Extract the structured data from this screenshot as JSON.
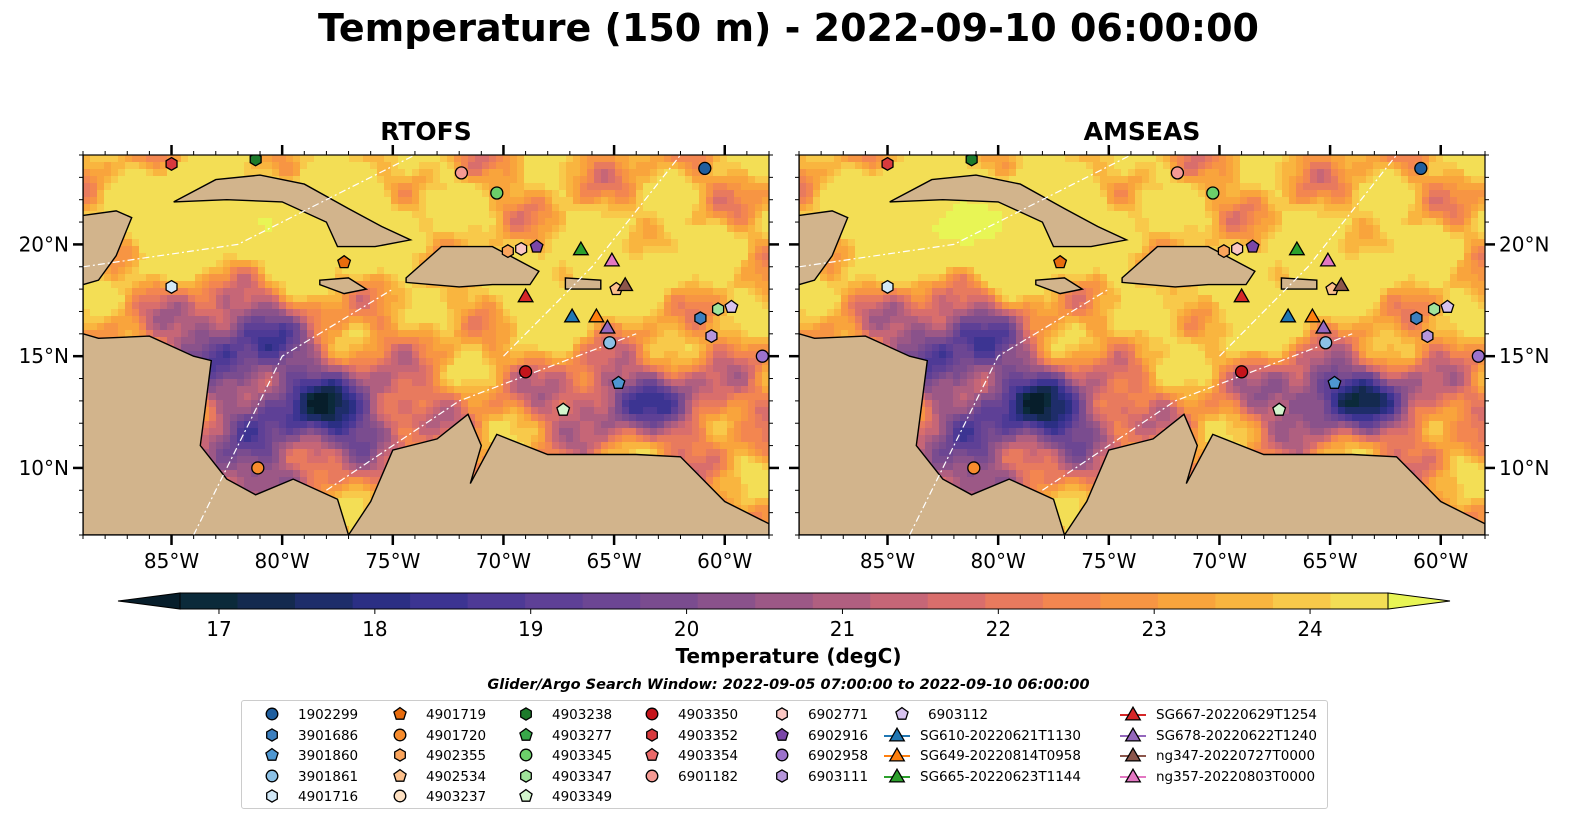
{
  "title": "Temperature (150 m) - 2022-09-10 06:00:00",
  "panels": [
    {
      "title": "RTOFS"
    },
    {
      "title": "AMSEAS"
    }
  ],
  "lon_ticks": [
    "85°W",
    "80°W",
    "75°W",
    "70°W",
    "65°W",
    "60°W"
  ],
  "lat_ticks": [
    "20°N",
    "15°N",
    "10°N"
  ],
  "colorbar": {
    "label": "Temperature (degC)",
    "ticks": [
      "17",
      "18",
      "19",
      "20",
      "21",
      "22",
      "23",
      "24"
    ],
    "min": 16.75,
    "max": 24.5,
    "step": 0.25,
    "colors": [
      "#0b2a3a",
      "#142a4f",
      "#1e2d6a",
      "#2b2f84",
      "#3c3492",
      "#4e3a96",
      "#5e4096",
      "#6c4693",
      "#7a4c8f",
      "#8a528b",
      "#9c5886",
      "#b05f80",
      "#c66677",
      "#d96e6c",
      "#e87a5e",
      "#f38650",
      "#f79543",
      "#f9a43c",
      "#f9b53f",
      "#f8c94a",
      "#f3de55"
    ],
    "under_color": "#071e2b",
    "over_color": "#e8f555"
  },
  "legend": {
    "title": "Glider/Argo Search Window: 2022-09-05 07:00:00 to 2022-09-10 06:00:00",
    "columns": [
      [
        {
          "label": "1902299",
          "marker": "circle",
          "color": "#1f5e9e"
        },
        {
          "label": "3901686",
          "marker": "hexagon",
          "color": "#3b7fbf"
        },
        {
          "label": "3901860",
          "marker": "pentagon",
          "color": "#4e97d1"
        },
        {
          "label": "3901861",
          "marker": "circle",
          "color": "#8cc1e6"
        },
        {
          "label": "4901716",
          "marker": "hexagon",
          "color": "#d2e8f7"
        }
      ],
      [
        {
          "label": "4901719",
          "marker": "pentagon",
          "color": "#e86c0e"
        },
        {
          "label": "4901720",
          "marker": "circle",
          "color": "#f78c2d"
        },
        {
          "label": "4902355",
          "marker": "hexagon",
          "color": "#fba55c"
        },
        {
          "label": "4902534",
          "marker": "pentagon",
          "color": "#fcc08c"
        },
        {
          "label": "4903237",
          "marker": "circle",
          "color": "#fde0c2"
        }
      ],
      [
        {
          "label": "4903238",
          "marker": "hexagon",
          "color": "#1d7a2b"
        },
        {
          "label": "4903277",
          "marker": "pentagon",
          "color": "#38a849"
        },
        {
          "label": "4903345",
          "marker": "circle",
          "color": "#6ccf6a"
        },
        {
          "label": "4903347",
          "marker": "hexagon",
          "color": "#a0e39a"
        },
        {
          "label": "4903349",
          "marker": "pentagon",
          "color": "#d3f5cd"
        }
      ],
      [
        {
          "label": "4903350",
          "marker": "circle",
          "color": "#c4141b"
        },
        {
          "label": "4903352",
          "marker": "hexagon",
          "color": "#d83a3e"
        },
        {
          "label": "4903354",
          "marker": "pentagon",
          "color": "#eb6a6a"
        },
        {
          "label": "6901182",
          "marker": "circle",
          "color": "#f59a94"
        }
      ],
      [
        {
          "label": "6902771",
          "marker": "hexagon",
          "color": "#fbc7c3"
        },
        {
          "label": "6902916",
          "marker": "pentagon",
          "color": "#7a46a8"
        },
        {
          "label": "6902958",
          "marker": "circle",
          "color": "#9c72cc"
        },
        {
          "label": "6903111",
          "marker": "hexagon",
          "color": "#b696db"
        }
      ],
      [
        {
          "label": "6903112",
          "marker": "pentagon",
          "color": "#d7c2ef"
        },
        {
          "label": "SG610-20220621T1130",
          "marker": "triangle-line",
          "color": "#1f77b4"
        },
        {
          "label": "SG649-20220814T0958",
          "marker": "triangle-line",
          "color": "#ff7f0e"
        },
        {
          "label": "SG665-20220623T1144",
          "marker": "triangle-line",
          "color": "#2ca02c"
        }
      ],
      [
        {
          "label": "SG667-20220629T1254",
          "marker": "triangle-line",
          "color": "#d62728"
        },
        {
          "label": "SG678-20220622T1240",
          "marker": "triangle-line",
          "color": "#9467bd"
        },
        {
          "label": "ng347-20220727T0000",
          "marker": "triangle-line",
          "color": "#8c564b"
        },
        {
          "label": "ng357-20220803T0000",
          "marker": "triangle-line",
          "color": "#e377c2"
        }
      ]
    ]
  },
  "map": {
    "extent_lon": [
      -89,
      -58
    ],
    "extent_lat": [
      7,
      24
    ],
    "land_color": "#d2b48c",
    "water_color": "#97b6e1",
    "observations": [
      {
        "id": "1902299",
        "lon": -60.9,
        "lat": 23.4
      },
      {
        "id": "4903352",
        "lon": -85.0,
        "lat": 23.6
      },
      {
        "id": "4903238",
        "lon": -81.2,
        "lat": 23.8
      },
      {
        "id": "6901182",
        "lon": -71.9,
        "lat": 23.2
      },
      {
        "id": "4903345",
        "lon": -70.3,
        "lat": 22.3
      },
      {
        "id": "4902355",
        "lon": -69.8,
        "lat": 19.7
      },
      {
        "id": "6902771",
        "lon": -69.2,
        "lat": 19.8
      },
      {
        "id": "6902916",
        "lon": -68.5,
        "lat": 19.9
      },
      {
        "id": "4901719",
        "lon": -77.2,
        "lat": 19.2
      },
      {
        "id": "4901716",
        "lon": -85.0,
        "lat": 18.1
      },
      {
        "id": "4902534",
        "lon": -64.9,
        "lat": 18.0
      },
      {
        "id": "4903347",
        "lon": -60.3,
        "lat": 17.1
      },
      {
        "id": "6903112",
        "lon": -59.7,
        "lat": 17.2
      },
      {
        "id": "3901686",
        "lon": -61.1,
        "lat": 16.7
      },
      {
        "id": "6903111",
        "lon": -60.6,
        "lat": 15.9
      },
      {
        "id": "6902958",
        "lon": -58.3,
        "lat": 15.0
      },
      {
        "id": "3901861",
        "lon": -65.2,
        "lat": 15.6
      },
      {
        "id": "4903350",
        "lon": -69.0,
        "lat": 14.3
      },
      {
        "id": "3901860",
        "lon": -64.8,
        "lat": 13.8
      },
      {
        "id": "4903349",
        "lon": -67.3,
        "lat": 12.6
      },
      {
        "id": "4901720",
        "lon": -81.1,
        "lat": 10.0
      }
    ],
    "gliders": [
      {
        "id": "SG665-20220623T1144",
        "lon": -66.5,
        "lat": 19.8
      },
      {
        "id": "ng357-20220803T0000",
        "lon": -65.1,
        "lat": 19.3
      },
      {
        "id": "ng347-20220727T0000",
        "lon": -64.5,
        "lat": 18.2
      },
      {
        "id": "SG667-20220629T1254",
        "lon": -69.0,
        "lat": 17.7
      },
      {
        "id": "SG610-20220621T1130",
        "lon": -66.9,
        "lat": 16.8
      },
      {
        "id": "SG649-20220814T0958",
        "lon": -65.8,
        "lat": 16.8
      },
      {
        "id": "SG678-20220622T1240",
        "lon": -65.3,
        "lat": 16.3
      }
    ]
  }
}
